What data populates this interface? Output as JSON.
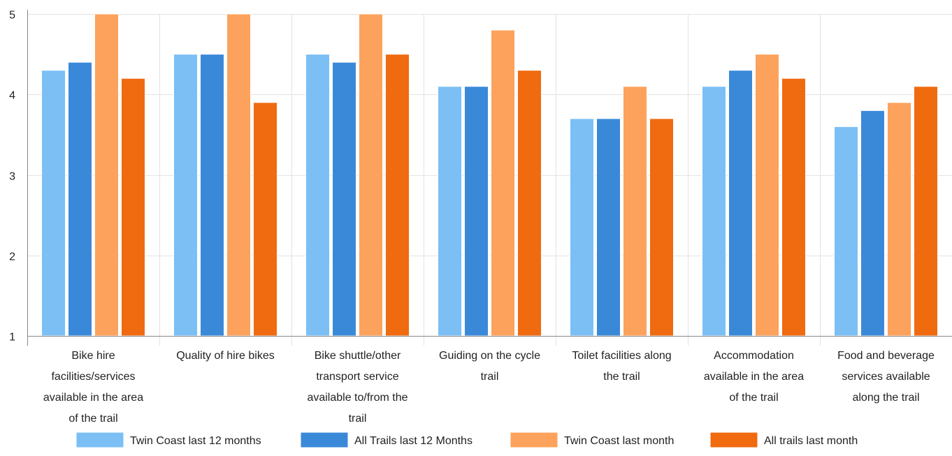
{
  "chart_data": {
    "type": "bar",
    "title": "",
    "xlabel": "",
    "ylabel": "",
    "ylim": [
      1,
      5
    ],
    "yticks": [
      1,
      2,
      3,
      4,
      5
    ],
    "grid": true,
    "legend_position": "bottom",
    "categories": [
      [
        "Bike hire",
        "facilities/services",
        "available in the area",
        "of the trail"
      ],
      [
        "Quality of hire bikes"
      ],
      [
        "Bike shuttle/other",
        "transport service",
        "available to/from the",
        "trail"
      ],
      [
        "Guiding on the cycle",
        "trail"
      ],
      [
        "Toilet facilities along",
        "the trail"
      ],
      [
        "Accommodation",
        "available in the area",
        "of the trail"
      ],
      [
        "Food and beverage",
        "services available",
        "along the trail"
      ]
    ],
    "series": [
      {
        "name": "Twin Coast last 12 months",
        "color": "#7bbff5",
        "values": [
          4.3,
          4.5,
          4.5,
          4.1,
          3.7,
          4.1,
          3.6
        ]
      },
      {
        "name": "All Trails last 12 Months",
        "color": "#3a89d9",
        "values": [
          4.4,
          4.5,
          4.4,
          4.1,
          3.7,
          4.3,
          3.8
        ]
      },
      {
        "name": "Twin Coast last month",
        "color": "#fda25c",
        "values": [
          5.0,
          5.0,
          5.0,
          4.8,
          4.1,
          4.5,
          3.9
        ]
      },
      {
        "name": "All trails last month",
        "color": "#f06a10",
        "values": [
          4.2,
          3.9,
          4.5,
          4.3,
          3.7,
          4.2,
          4.1
        ]
      }
    ]
  }
}
